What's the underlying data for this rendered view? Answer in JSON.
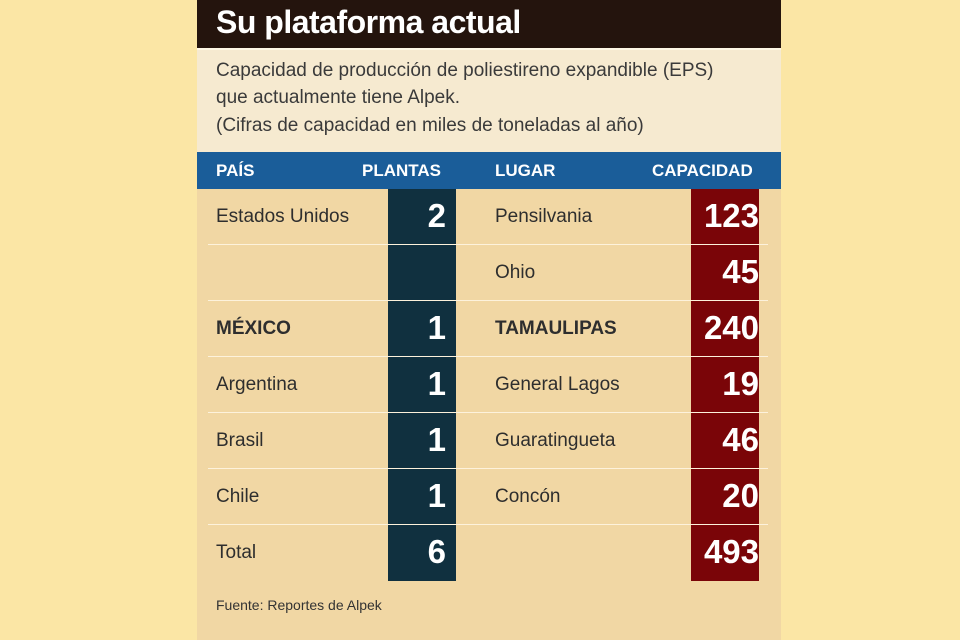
{
  "title": "Su plataforma actual",
  "subtitle_lines": [
    "Capacidad de producción de poliestireno expandible (EPS)",
    "que actualmente tiene Alpek.",
    "(Cifras de capacidad en miles de toneladas al año)"
  ],
  "headers": {
    "pais": "PAÍS",
    "plantas": "PLANTAS",
    "lugar": "LUGAR",
    "capacidad": "CAPACIDAD"
  },
  "source": "Fuente: Reportes de Alpek",
  "colors": {
    "background": "#fbe6a5",
    "card": "#f1d7a4",
    "title_bar": "#24140d",
    "header_bar": "#1a5d99",
    "plantas_column": "#10303f",
    "capacidad_column": "#7a0508"
  },
  "chart_data": {
    "type": "table",
    "columns": [
      "PAÍS",
      "PLANTAS",
      "LUGAR",
      "CAPACIDAD"
    ],
    "rows": [
      {
        "pais": "Estados Unidos",
        "plantas": "2",
        "lugar": "Pensilvania",
        "capacidad": "123",
        "bold": false
      },
      {
        "pais": "",
        "plantas": "",
        "lugar": "Ohio",
        "capacidad": "45",
        "bold": false
      },
      {
        "pais": "MÉXICO",
        "plantas": "1",
        "lugar": "TAMAULIPAS",
        "capacidad": "240",
        "bold": true
      },
      {
        "pais": "Argentina",
        "plantas": "1",
        "lugar": "General Lagos",
        "capacidad": "19",
        "bold": false
      },
      {
        "pais": "Brasil",
        "plantas": "1",
        "lugar": "Guaratingueta",
        "capacidad": "46",
        "bold": false
      },
      {
        "pais": "Chile",
        "plantas": "1",
        "lugar": "Concón",
        "capacidad": "20",
        "bold": false
      },
      {
        "pais": "Total",
        "plantas": "6",
        "lugar": "",
        "capacidad": "493",
        "bold": false
      }
    ]
  }
}
